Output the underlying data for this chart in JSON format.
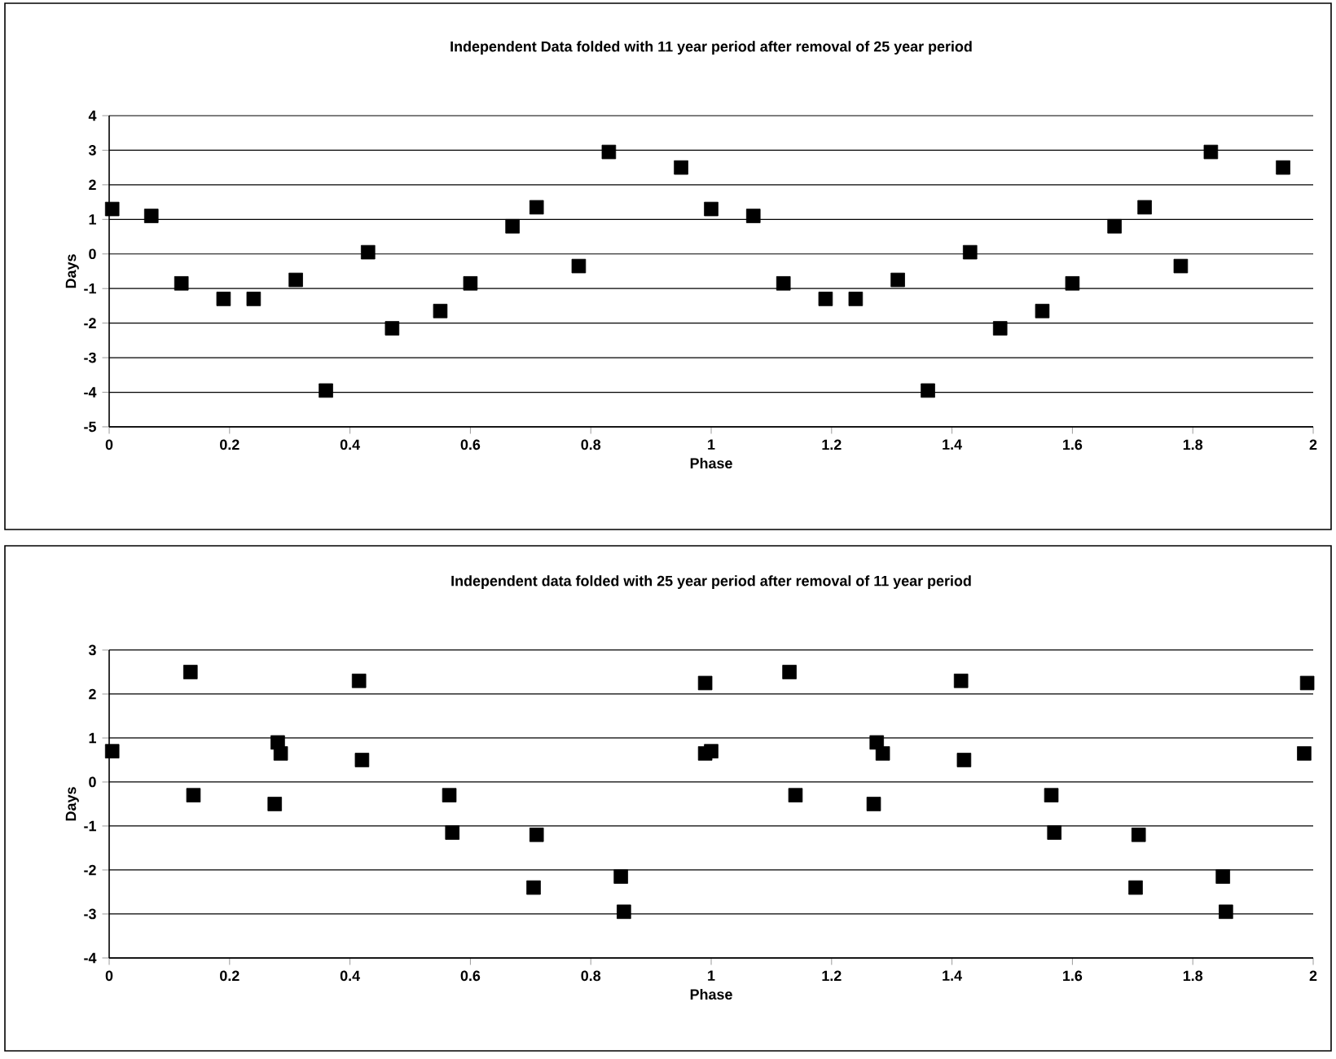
{
  "chart_data": [
    {
      "type": "scatter",
      "title": "Independent Data folded with 11 year period after removal of 25 year period",
      "xlabel": "Phase",
      "ylabel": "Days",
      "x": [
        0.005,
        0.07,
        0.12,
        0.19,
        0.24,
        0.31,
        0.36,
        0.43,
        0.47,
        0.55,
        0.6,
        0.67,
        0.71,
        0.78,
        0.83,
        0.95,
        1.0,
        1.07,
        1.12,
        1.19,
        1.24,
        1.31,
        1.36,
        1.43,
        1.48,
        1.55,
        1.6,
        1.67,
        1.72,
        1.78,
        1.83,
        1.95
      ],
      "values": [
        1.3,
        1.1,
        -0.85,
        -1.3,
        -1.3,
        -0.75,
        -3.95,
        0.05,
        -2.15,
        -1.65,
        -0.85,
        0.8,
        1.35,
        -0.35,
        2.95,
        2.5,
        1.3,
        1.1,
        -0.85,
        -1.3,
        -1.3,
        -0.75,
        -3.95,
        0.05,
        -2.15,
        -1.65,
        -0.85,
        0.8,
        1.35,
        -0.35,
        2.95,
        2.5
      ],
      "color": "#000000",
      "marker": "square",
      "grid": "y",
      "xlim": [
        0,
        2
      ],
      "ylim": [
        -5,
        4
      ],
      "xticks": [
        0,
        0.2,
        0.4,
        0.6,
        0.8,
        1,
        1.2,
        1.4,
        1.6,
        1.8,
        2
      ],
      "yticks": [
        -5,
        -4,
        -3,
        -2,
        -1,
        0,
        1,
        2,
        3,
        4
      ]
    },
    {
      "type": "scatter",
      "title": "Independent data folded with 25 year period after removal  of 11 year period",
      "xlabel": "Phase",
      "ylabel": "Days",
      "x": [
        0.005,
        0.135,
        0.14,
        0.28,
        0.285,
        0.275,
        0.415,
        0.42,
        0.565,
        0.57,
        0.705,
        0.71,
        0.85,
        0.855,
        0.99,
        0.99,
        1.0,
        1.13,
        1.14,
        1.275,
        1.285,
        1.27,
        1.415,
        1.42,
        1.565,
        1.57,
        1.705,
        1.71,
        1.85,
        1.855,
        1.99,
        1.985
      ],
      "values": [
        0.7,
        2.5,
        -0.3,
        0.9,
        0.65,
        -0.5,
        2.3,
        0.5,
        -0.3,
        -1.15,
        -2.4,
        -1.2,
        -2.15,
        -2.95,
        2.25,
        0.65,
        0.7,
        2.5,
        -0.3,
        0.9,
        0.65,
        -0.5,
        2.3,
        0.5,
        -0.3,
        -1.15,
        -2.4,
        -1.2,
        -2.15,
        -2.95,
        2.25,
        0.65
      ],
      "color": "#000000",
      "marker": "square",
      "grid": "y",
      "xlim": [
        0,
        2
      ],
      "ylim": [
        -4,
        3
      ],
      "xticks": [
        0,
        0.2,
        0.4,
        0.6,
        0.8,
        1,
        1.2,
        1.4,
        1.6,
        1.8,
        2
      ],
      "yticks": [
        -4,
        -3,
        -2,
        -1,
        0,
        1,
        2,
        3
      ]
    }
  ]
}
